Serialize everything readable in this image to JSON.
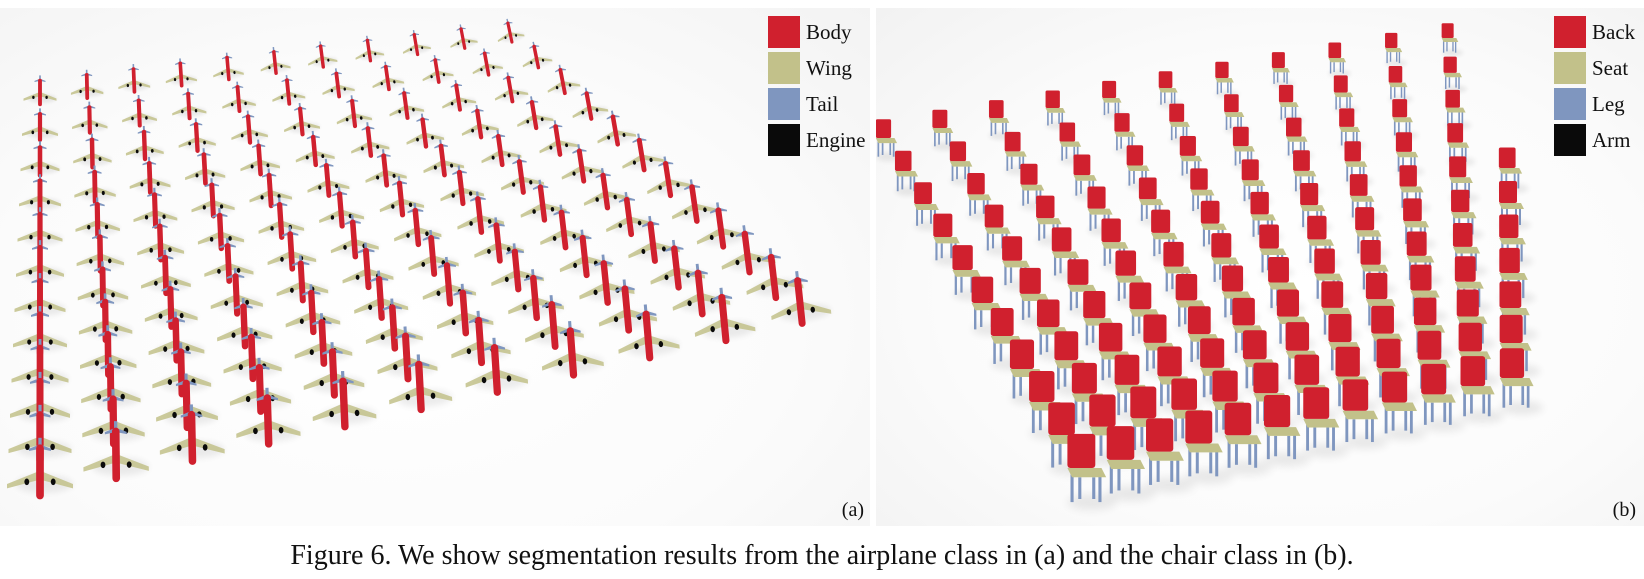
{
  "figure": {
    "caption": "Figure 6. We show segmentation results from the airplane class in (a) and the chair class in (b).",
    "panel_a": {
      "label": "(a)",
      "object": "airplane",
      "legend": [
        {
          "label": "Body",
          "color": "#d0202e"
        },
        {
          "label": "Wing",
          "color": "#c2c18a"
        },
        {
          "label": "Tail",
          "color": "#7f96bf"
        },
        {
          "label": "Engine",
          "color": "#0a0a0a"
        }
      ]
    },
    "panel_b": {
      "label": "(b)",
      "object": "chair",
      "legend": [
        {
          "label": "Back",
          "color": "#d0202e"
        },
        {
          "label": "Seat",
          "color": "#c2c18a"
        },
        {
          "label": "Leg",
          "color": "#7f96bf"
        },
        {
          "label": "Arm",
          "color": "#0a0a0a"
        }
      ]
    }
  }
}
